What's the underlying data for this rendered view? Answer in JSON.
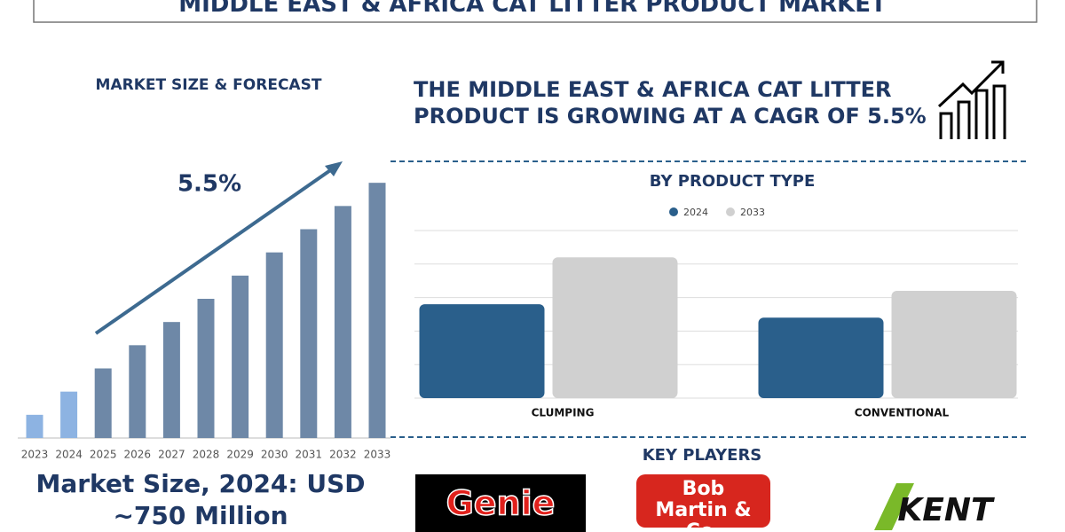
{
  "title": "MIDDLE EAST & AFRICA CAT LITTER PRODUCT MARKET",
  "headline": "THE MIDDLE EAST & AFRICA CAT LITTER PRODUCT IS GROWING AT A CAGR OF 5.5%",
  "market_size": "Market Size, 2024: USD ~750 Million",
  "key_players": {
    "title": "KEY PLAYERS",
    "names": [
      "Genie",
      "Bob Martin & Co.",
      "KENT"
    ]
  },
  "chart_data": [
    {
      "type": "bar",
      "title": "MARKET SIZE & FORECAST",
      "annotation": "5.5%",
      "categories": [
        "2023",
        "2024",
        "2025",
        "2026",
        "2027",
        "2028",
        "2029",
        "2030",
        "2031",
        "2032",
        "2033"
      ],
      "values": [
        1,
        2,
        3,
        4,
        5,
        6,
        7,
        8,
        9,
        10,
        11
      ],
      "colors": [
        "#8db3e2",
        "#8db3e2",
        "#6e88a7",
        "#6e88a7",
        "#6e88a7",
        "#6e88a7",
        "#6e88a7",
        "#6e88a7",
        "#6e88a7",
        "#6e88a7",
        "#6e88a7"
      ],
      "ylim": [
        0,
        12
      ]
    },
    {
      "type": "grouped-bar",
      "title": "BY PRODUCT TYPE",
      "categories": [
        "CLUMPING",
        "CONVENTIONAL"
      ],
      "series": [
        {
          "name": "2024",
          "color": "#2a5f8b",
          "values": [
            2.8,
            2.4
          ]
        },
        {
          "name": "2033",
          "color": "#d0d0d0",
          "values": [
            4.2,
            3.2
          ]
        }
      ],
      "ylim": [
        0,
        5
      ],
      "yticks": [
        0,
        1,
        2,
        3,
        4,
        5
      ],
      "grid": true
    }
  ]
}
